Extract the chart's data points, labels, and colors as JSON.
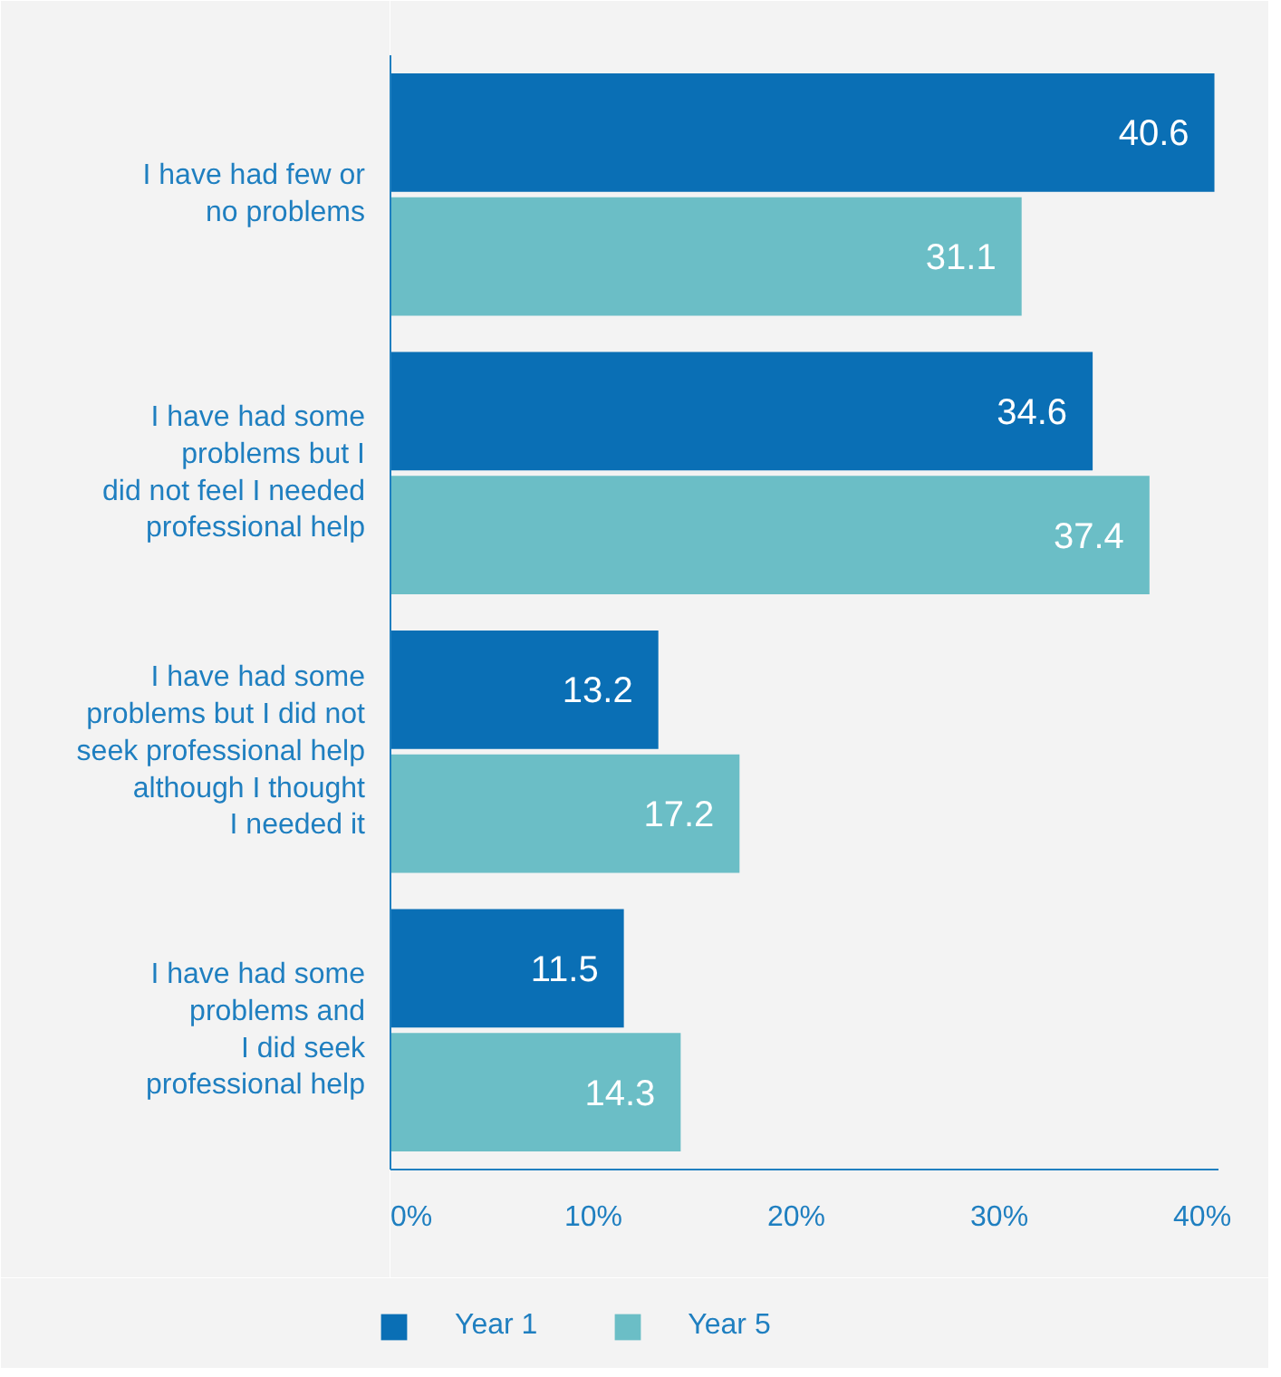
{
  "chart_data": {
    "type": "bar",
    "orientation": "horizontal",
    "categories": [
      "I have had few or\nno problems",
      "I have had some\nproblems but I\ndid not feel I needed\nprofessional help",
      "I have had some\nproblems but I did not\nseek professional help\nalthough I thought\nI needed it",
      "I have had some\nproblems and\nI did seek\nprofessional help"
    ],
    "series": [
      {
        "name": "Year 1",
        "color": "#0a6fb5",
        "values": [
          40.6,
          34.6,
          13.2,
          11.5
        ]
      },
      {
        "name": "Year 5",
        "color": "#6bbec6",
        "values": [
          31.1,
          37.4,
          17.2,
          14.3
        ]
      }
    ],
    "xlim": [
      0,
      40.8
    ],
    "xticks": [
      {
        "value": 0,
        "label": "0%"
      },
      {
        "value": 10,
        "label": "10%"
      },
      {
        "value": 20,
        "label": "20%"
      },
      {
        "value": 30,
        "label": "30%"
      },
      {
        "value": 40,
        "label": "40%"
      }
    ],
    "data_labels": true,
    "grid": false,
    "legend": "bottom"
  }
}
